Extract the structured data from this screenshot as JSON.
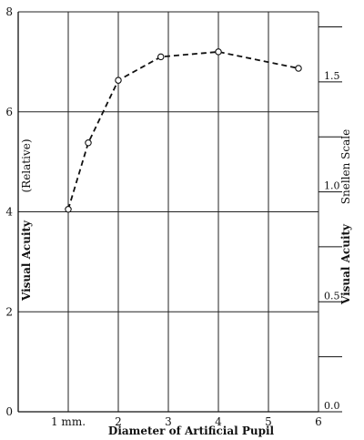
{
  "chart_data": {
    "type": "line",
    "title": "",
    "xlabel": "Diameter of Artificial Pupil",
    "ylabel": "Visual Acuity",
    "ylabel_sub": "(Relative)",
    "y2label": "Visual Acuity",
    "y2label_sub": "Snellen Scale",
    "xlim": [
      0,
      6
    ],
    "ylim": [
      0,
      8
    ],
    "x_ticks": [
      {
        "value": 1,
        "label": "1 mm."
      },
      {
        "value": 2,
        "label": "2"
      },
      {
        "value": 3,
        "label": "3"
      },
      {
        "value": 4,
        "label": "4"
      },
      {
        "value": 5,
        "label": "5"
      },
      {
        "value": 6,
        "label": "6"
      }
    ],
    "y_ticks": [
      {
        "value": 0,
        "label": "0"
      },
      {
        "value": 2,
        "label": "2"
      },
      {
        "value": 4,
        "label": "4"
      },
      {
        "value": 6,
        "label": "6"
      },
      {
        "value": 8,
        "label": "8"
      }
    ],
    "y2_ticks": [
      {
        "value": 0.0,
        "label": "0.0"
      },
      {
        "value": 0.5,
        "label": "0.5"
      },
      {
        "value": 1.0,
        "label": "1.0"
      },
      {
        "value": 1.5,
        "label": "1.5"
      }
    ],
    "y2_minor_ticks": [
      0.25,
      0.75,
      1.25,
      1.75
    ],
    "y2_per_y": 0.2273,
    "grid": true,
    "line_style": "dashed",
    "marker": "open-circle",
    "series": [
      {
        "x": [
          1.0,
          1.4,
          2.0,
          2.85,
          4.0,
          5.6
        ],
        "y": [
          4.05,
          5.38,
          6.63,
          7.1,
          7.2,
          6.87
        ]
      }
    ]
  }
}
